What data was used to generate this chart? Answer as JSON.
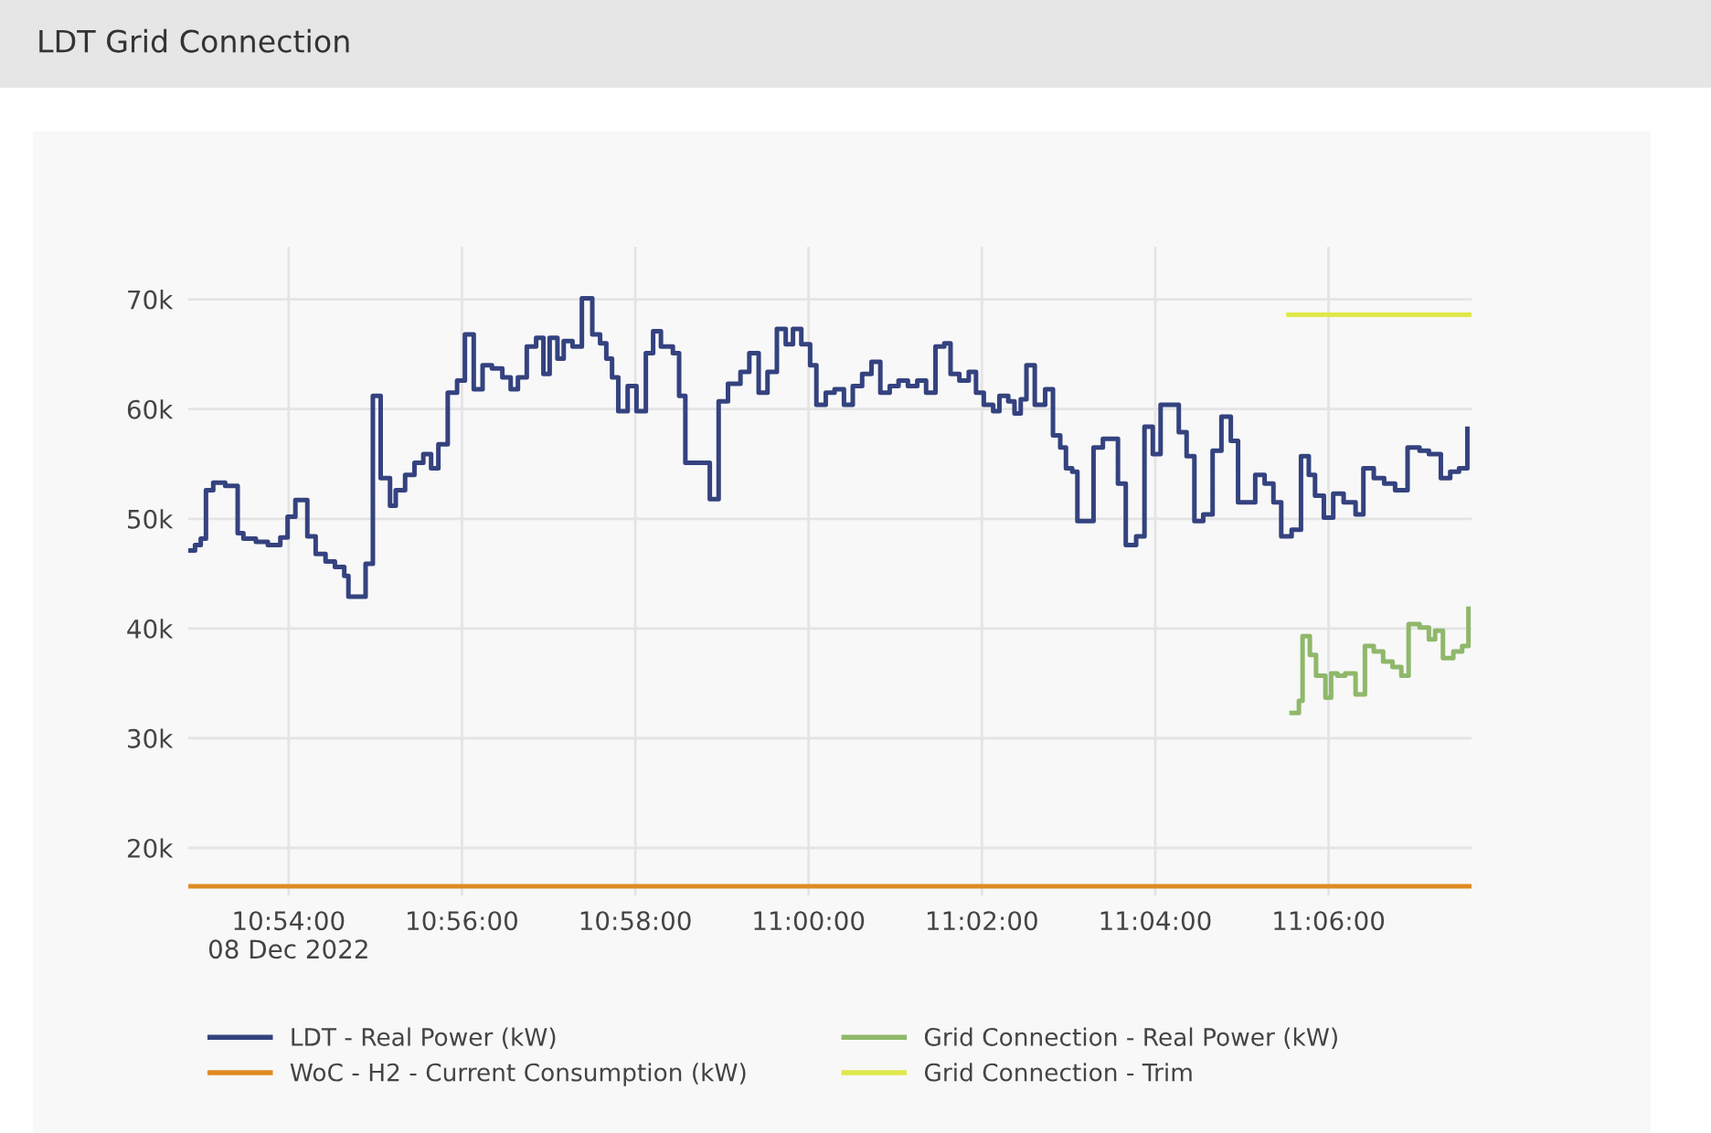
{
  "chart_data": {
    "type": "step",
    "title": "LDT Grid Connection",
    "xlim": [
      10.8807,
      11.1275
    ],
    "ylim": [
      15670,
      74800
    ],
    "xticks": [
      {
        "value": 10.9,
        "label": "10:54:00\n08 Dec 2022"
      },
      {
        "value": 10.93333,
        "label": "10:56:00"
      },
      {
        "value": 10.96667,
        "label": "10:58:00"
      },
      {
        "value": 11.0,
        "label": "11:00:00"
      },
      {
        "value": 11.03333,
        "label": "11:02:00"
      },
      {
        "value": 11.06667,
        "label": "11:04:00"
      },
      {
        "value": 11.1,
        "label": "11:06:00"
      }
    ],
    "yticks": [
      {
        "value": 20000,
        "label": "20k"
      },
      {
        "value": 30000,
        "label": "30k"
      },
      {
        "value": 40000,
        "label": "40k"
      },
      {
        "value": 50000,
        "label": "50k"
      },
      {
        "value": 60000,
        "label": "60k"
      },
      {
        "value": 70000,
        "label": "70k"
      }
    ],
    "grid": true,
    "legend": "bottom",
    "marker": "none",
    "line_style": "solid",
    "series": [
      {
        "name": "LDT - Real Power (kW)",
        "color": "#34427f",
        "x": [
          10.8811,
          10.882,
          10.8831,
          10.8841,
          10.8855,
          10.8878,
          10.8902,
          10.8913,
          10.8937,
          10.896,
          10.8984,
          10.8998,
          10.9013,
          10.9036,
          10.9052,
          10.9071,
          10.9089,
          10.9107,
          10.9115,
          10.9148,
          10.9162,
          10.9177,
          10.9195,
          10.9206,
          10.9224,
          10.9242,
          10.9259,
          10.9274,
          10.9288,
          10.9306,
          10.9324,
          10.9339,
          10.9356,
          10.9373,
          10.9391,
          10.9411,
          10.9427,
          10.9441,
          10.9458,
          10.9476,
          10.949,
          10.9502,
          10.9517,
          10.9529,
          10.9546,
          10.9564,
          10.9584,
          10.9599,
          10.9611,
          10.9622,
          10.9634,
          10.964,
          10.9652,
          10.9669,
          10.9687,
          10.9701,
          10.9716,
          10.9739,
          10.9751,
          10.9763,
          10.981,
          10.9827,
          10.9845,
          10.9869,
          10.9886,
          10.9904,
          10.9921,
          10.9939,
          10.9956,
          10.997,
          10.9986,
          11.0003,
          11.0015,
          11.0033,
          11.005,
          11.0068,
          11.0085,
          11.0103,
          11.0121,
          11.0138,
          11.0156,
          11.0173,
          11.0191,
          11.0209,
          11.0226,
          11.0244,
          11.0261,
          11.0273,
          11.029,
          11.0308,
          11.0322,
          11.0337,
          11.0355,
          11.0367,
          11.0384,
          11.0396,
          11.0408,
          11.0419,
          11.0435,
          11.0455,
          11.047,
          11.0484,
          11.0495,
          11.0507,
          11.0517,
          11.0548,
          11.0566,
          11.0595,
          11.061,
          11.063,
          11.0646,
          11.0662,
          11.0677,
          11.0712,
          11.0727,
          11.0742,
          11.0759,
          11.0777,
          11.0794,
          11.0812,
          11.0826,
          11.0859,
          11.0877,
          11.0894,
          11.0909,
          11.0929,
          11.0947,
          11.0962,
          11.0974,
          11.0991,
          11.1009,
          11.1029,
          11.1052,
          11.1067,
          11.1087,
          11.1107,
          11.1128,
          11.1152,
          11.1175,
          11.1193,
          11.1216,
          11.1234,
          11.1251,
          11.1267
        ],
        "values": [
          47100,
          47600,
          48200,
          52600,
          53300,
          53000,
          48700,
          48200,
          47900,
          47600,
          48300,
          50200,
          51700,
          48400,
          46800,
          46100,
          45600,
          44800,
          42900,
          45900,
          61200,
          53700,
          51200,
          52600,
          54000,
          55100,
          55900,
          54600,
          56800,
          61500,
          62600,
          66800,
          61800,
          64000,
          63700,
          62900,
          61800,
          62900,
          65700,
          66500,
          63200,
          66500,
          64600,
          66200,
          65700,
          70100,
          66800,
          66000,
          64600,
          62900,
          59800,
          59800,
          62100,
          59800,
          65100,
          67100,
          65700,
          65100,
          61200,
          55100,
          51800,
          60700,
          62300,
          63400,
          65100,
          61500,
          63400,
          67300,
          65900,
          67300,
          65900,
          64000,
          60400,
          61500,
          61800,
          60400,
          62100,
          63200,
          64300,
          61500,
          62100,
          62600,
          62100,
          62600,
          61500,
          65700,
          66000,
          63200,
          62600,
          63400,
          61500,
          60400,
          59800,
          61200,
          60700,
          59600,
          60900,
          64000,
          60400,
          61800,
          57600,
          56500,
          54600,
          54300,
          49800,
          56500,
          57300,
          53200,
          47600,
          48400,
          58400,
          55900,
          60400,
          57900,
          55700,
          49800,
          50400,
          56200,
          59300,
          57100,
          51500,
          54000,
          53200,
          51500,
          48400,
          49000,
          55700,
          54000,
          52100,
          50100,
          52300,
          51500,
          50400,
          54600,
          53700,
          53200,
          52600,
          56500,
          56200,
          55900,
          53700,
          54300,
          54600,
          58200
        ]
      },
      {
        "name": "Grid Connection - Real Power (kW)",
        "color": "#8fb86a",
        "x": [
          11.0929,
          11.0943,
          11.095,
          11.0964,
          11.0976,
          11.0994,
          11.1005,
          11.1017,
          11.1032,
          11.1052,
          11.107,
          11.1087,
          11.1105,
          11.1123,
          11.114,
          11.1154,
          11.1175,
          11.1193,
          11.1205,
          11.122,
          11.124,
          11.1257,
          11.1269
        ],
        "values": [
          32300,
          33400,
          39300,
          37600,
          35700,
          33700,
          35900,
          35700,
          35900,
          34000,
          38400,
          37900,
          37000,
          36500,
          35700,
          40400,
          40100,
          39000,
          39800,
          37300,
          37900,
          38400,
          41800
        ]
      },
      {
        "name": "WoC - H2 - Current Consumption (kW)",
        "color": "#e08b22",
        "x": [
          10.8807,
          11.1275
        ],
        "values": [
          16500,
          16500
        ]
      },
      {
        "name": "Grid Connection - Trim",
        "color": "#dfe84a",
        "x": [
          11.0923,
          11.1275
        ],
        "values": [
          68600,
          68600
        ]
      }
    ]
  }
}
